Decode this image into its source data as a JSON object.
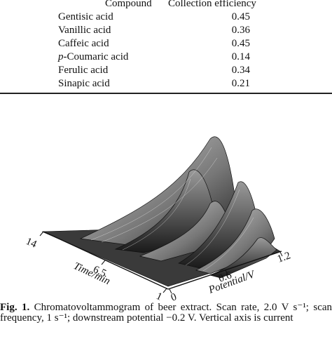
{
  "table": {
    "headers": {
      "compound": "Compound",
      "efficiency": "Collection efficiency"
    },
    "rows": [
      {
        "compound_prefix": "",
        "compound": "Gentisic acid",
        "dots": ". .      . .",
        "value": "0.45"
      },
      {
        "compound_prefix": "",
        "compound": "Vanillic acid",
        "dots": ". .      . .",
        "value": "0.36"
      },
      {
        "compound_prefix": "",
        "compound": "Caffeic acid",
        "dots": ". .      . .",
        "value": "0.45"
      },
      {
        "compound_prefix": "p",
        "compound": "-Coumaric acid",
        "dots": ". .",
        "value": "0.14"
      },
      {
        "compound_prefix": "",
        "compound": "Ferulic acid",
        "dots": ". .      . .",
        "value": "0.34"
      },
      {
        "compound_prefix": "",
        "compound": "Sinapic acid",
        "dots": ". .      . .",
        "value": "0.21"
      }
    ]
  },
  "figure": {
    "time_axis": {
      "label": "Time/min",
      "ticks": [
        "14",
        "6.5",
        "1"
      ]
    },
    "potential_axis": {
      "label": "Potential/V",
      "ticks": [
        "0",
        "0.6",
        "1.2"
      ]
    }
  },
  "caption": {
    "label": "Fig. 1.",
    "text": "Chromatovoltammogram of beer extract. Scan rate, 2.0 V s⁻¹; scan frequency, 1 s⁻¹; downstream potential −0.2 V. Vertical axis is current"
  }
}
